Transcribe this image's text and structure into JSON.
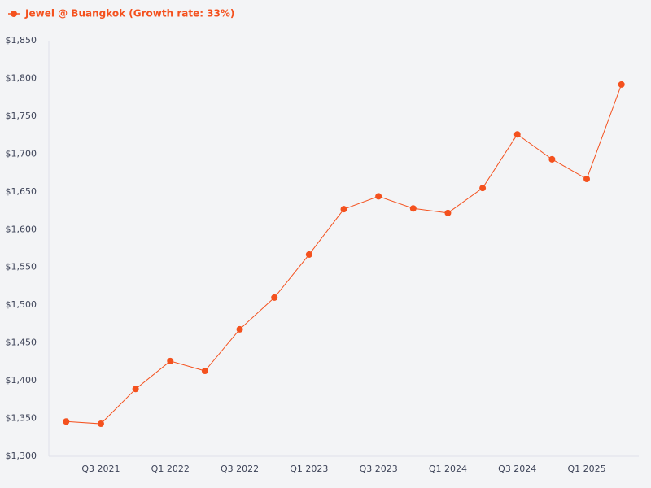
{
  "chart_data": {
    "type": "line",
    "categories": [
      null,
      "Q3 2021",
      null,
      "Q1 2022",
      null,
      "Q3 2022",
      null,
      "Q1 2023",
      null,
      "Q3 2023",
      null,
      "Q1 2024",
      null,
      "Q3 2024",
      null,
      "Q1 2025",
      null
    ],
    "series": [
      {
        "name": "Jewel @ Buangkok (Growth rate: 33%)",
        "color": "#f4511e",
        "values": [
          1346,
          1343,
          1389,
          1426,
          1413,
          1468,
          1510,
          1567,
          1627,
          1644,
          1628,
          1622,
          1655,
          1726,
          1693,
          1667,
          1792
        ]
      }
    ],
    "ylim": [
      1300,
      1850
    ],
    "yticks": [
      {
        "value": 1300,
        "label": "$1,300"
      },
      {
        "value": 1350,
        "label": "$1,350"
      },
      {
        "value": 1400,
        "label": "$1,400"
      },
      {
        "value": 1450,
        "label": "$1,450"
      },
      {
        "value": 1500,
        "label": "$1,500"
      },
      {
        "value": 1550,
        "label": "$1,550"
      },
      {
        "value": 1600,
        "label": "$1,600"
      },
      {
        "value": 1650,
        "label": "$1,650"
      },
      {
        "value": 1700,
        "label": "$1,700"
      },
      {
        "value": 1750,
        "label": "$1,750"
      },
      {
        "value": 1800,
        "label": "$1,800"
      },
      {
        "value": 1850,
        "label": "$1,850"
      }
    ],
    "grid": false,
    "legend": "top-left"
  }
}
